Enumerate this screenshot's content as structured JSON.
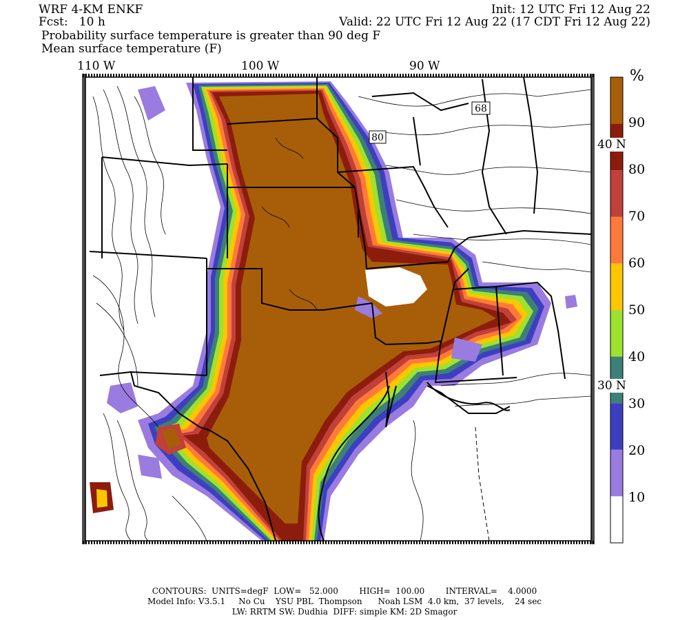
{
  "header": {
    "model": "WRF 4-KM ENKF",
    "fcst": "Fcst:   10 h",
    "init": "Init: 12 UTC Fri 12 Aug 22",
    "valid": "Valid: 22 UTC Fri 12 Aug 22 (17 CDT Fri 12 Aug 22)",
    "title1": "Probability surface temperature is greater than 90 deg F",
    "title2": "Mean surface temperature (F)"
  },
  "map": {
    "lon_labels": [
      "110 W",
      "100 W",
      "90 W"
    ],
    "lat_labels": [
      "40 N",
      "30 N"
    ],
    "contour_labels": [
      "80",
      "68"
    ]
  },
  "colorbar": {
    "unit": "%",
    "ticks": [
      "90",
      "80",
      "70",
      "60",
      "50",
      "40",
      "30",
      "20",
      "10"
    ],
    "colors": [
      "#ffffff",
      "#9a7be0",
      "#3d3fc0",
      "#3c8078",
      "#9ce22e",
      "#ffc600",
      "#ff7a3a",
      "#c0403a",
      "#8c1c0c",
      "#a85e08"
    ]
  },
  "footer": {
    "line1": "CONTOURS:  UNITS=degF  LOW=   52.000        HIGH=  100.00        INTERVAL=    4.0000",
    "line2": "Model Info: V3.5.1     No Cu    YSU PBL  Thompson      Noah LSM  4.0 km,  37 levels,    24 sec",
    "line3": "LW: RRTM SW: Dudhia  DIFF: simple KM: 2D Smagor"
  }
}
